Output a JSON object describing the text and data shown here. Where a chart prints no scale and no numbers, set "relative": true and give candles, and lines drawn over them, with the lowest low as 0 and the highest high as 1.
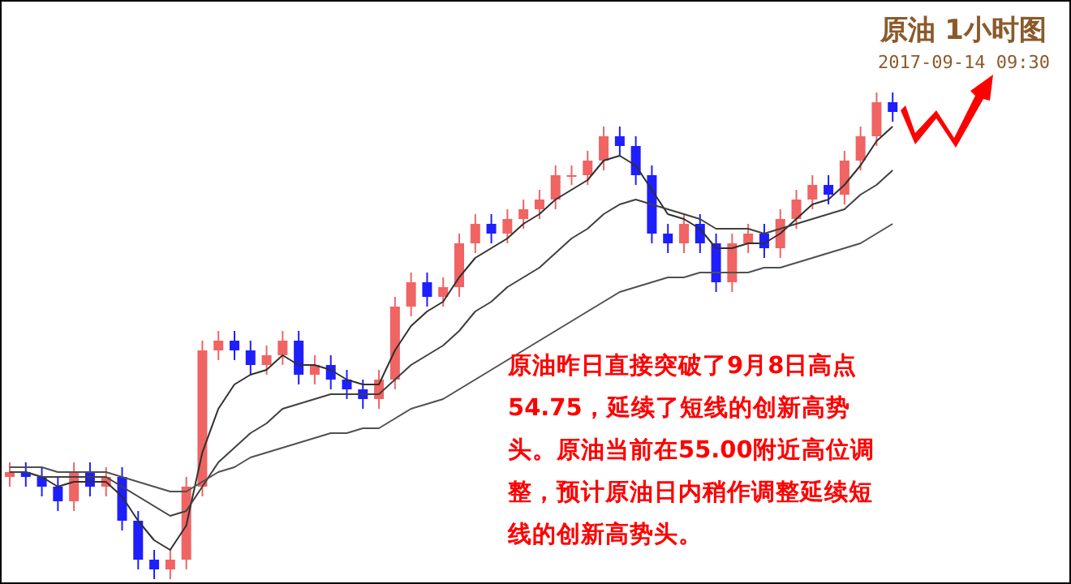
{
  "chart_data": {
    "type": "candlestick",
    "title": "原油 1小时图",
    "subtitle": "2017-09-14 09:30",
    "relative": true,
    "marker": "none",
    "annotations": [
      "原油昨日直接突破了9月8日高点54.75，延续了短线的创新高势头。原油当前在55.00附近高位调整，预计原油日内稍作调整延续短线的创新高势头。"
    ],
    "categories": [
      null,
      null,
      null,
      null,
      null,
      null,
      null,
      null,
      null,
      null,
      null,
      null,
      null,
      null,
      null,
      null,
      null,
      null,
      null,
      null,
      null,
      null,
      null,
      null,
      null,
      null,
      null,
      null,
      null,
      null,
      null,
      null,
      null,
      null,
      null,
      null,
      null,
      null,
      null,
      null,
      null,
      null,
      null,
      null,
      null,
      null,
      null,
      null,
      null,
      null,
      null,
      null,
      null,
      null,
      null,
      null
    ],
    "ohlc": [
      [
        0.21,
        0.24,
        0.19,
        0.22
      ],
      [
        0.22,
        0.24,
        0.19,
        0.21
      ],
      [
        0.21,
        0.23,
        0.17,
        0.19
      ],
      [
        0.19,
        0.21,
        0.14,
        0.16
      ],
      [
        0.16,
        0.24,
        0.14,
        0.22
      ],
      [
        0.22,
        0.24,
        0.17,
        0.19
      ],
      [
        0.19,
        0.23,
        0.17,
        0.21
      ],
      [
        0.21,
        0.23,
        0.1,
        0.12
      ],
      [
        0.12,
        0.14,
        0.02,
        0.04
      ],
      [
        0.04,
        0.06,
        0.0,
        0.02
      ],
      [
        0.02,
        0.06,
        0.0,
        0.04
      ],
      [
        0.04,
        0.21,
        0.02,
        0.19
      ],
      [
        0.19,
        0.49,
        0.17,
        0.47
      ],
      [
        0.47,
        0.51,
        0.45,
        0.49
      ],
      [
        0.49,
        0.51,
        0.45,
        0.47
      ],
      [
        0.47,
        0.49,
        0.42,
        0.44
      ],
      [
        0.44,
        0.48,
        0.42,
        0.46
      ],
      [
        0.46,
        0.51,
        0.44,
        0.49
      ],
      [
        0.49,
        0.51,
        0.4,
        0.42
      ],
      [
        0.42,
        0.46,
        0.4,
        0.44
      ],
      [
        0.44,
        0.46,
        0.39,
        0.41
      ],
      [
        0.41,
        0.43,
        0.37,
        0.39
      ],
      [
        0.39,
        0.41,
        0.35,
        0.37
      ],
      [
        0.37,
        0.43,
        0.35,
        0.41
      ],
      [
        0.41,
        0.58,
        0.39,
        0.56
      ],
      [
        0.56,
        0.63,
        0.54,
        0.61
      ],
      [
        0.61,
        0.63,
        0.56,
        0.58
      ],
      [
        0.58,
        0.62,
        0.56,
        0.6
      ],
      [
        0.6,
        0.71,
        0.58,
        0.69
      ],
      [
        0.69,
        0.75,
        0.67,
        0.73
      ],
      [
        0.73,
        0.75,
        0.69,
        0.71
      ],
      [
        0.71,
        0.76,
        0.69,
        0.74
      ],
      [
        0.74,
        0.78,
        0.72,
        0.76
      ],
      [
        0.76,
        0.8,
        0.74,
        0.78
      ],
      [
        0.78,
        0.85,
        0.76,
        0.83
      ],
      [
        0.83,
        0.85,
        0.81,
        0.83
      ],
      [
        0.83,
        0.88,
        0.81,
        0.86
      ],
      [
        0.86,
        0.93,
        0.84,
        0.91
      ],
      [
        0.91,
        0.93,
        0.87,
        0.89
      ],
      [
        0.89,
        0.91,
        0.81,
        0.83
      ],
      [
        0.83,
        0.85,
        0.69,
        0.71
      ],
      [
        0.71,
        0.73,
        0.67,
        0.69
      ],
      [
        0.69,
        0.75,
        0.67,
        0.73
      ],
      [
        0.73,
        0.75,
        0.67,
        0.69
      ],
      [
        0.69,
        0.71,
        0.59,
        0.61
      ],
      [
        0.61,
        0.71,
        0.59,
        0.69
      ],
      [
        0.69,
        0.73,
        0.67,
        0.71
      ],
      [
        0.71,
        0.73,
        0.66,
        0.68
      ],
      [
        0.68,
        0.76,
        0.66,
        0.74
      ],
      [
        0.74,
        0.8,
        0.72,
        0.78
      ],
      [
        0.78,
        0.83,
        0.76,
        0.81
      ],
      [
        0.81,
        0.83,
        0.77,
        0.79
      ],
      [
        0.79,
        0.88,
        0.77,
        0.86
      ],
      [
        0.86,
        0.93,
        0.84,
        0.91
      ],
      [
        0.91,
        1.0,
        0.89,
        0.98
      ],
      [
        0.98,
        1.0,
        0.94,
        0.96
      ]
    ],
    "colors": [
      "#f06464",
      "#1e1eff",
      "#1e1eff",
      "#1e1eff",
      "#f06464",
      "#1e1eff",
      "#f06464",
      "#1e1eff",
      "#1e1eff",
      "#1e1eff",
      "#f06464",
      "#f06464",
      "#f06464",
      "#f06464",
      "#1e1eff",
      "#1e1eff",
      "#f06464",
      "#f06464",
      "#1e1eff",
      "#f06464",
      "#1e1eff",
      "#1e1eff",
      "#1e1eff",
      "#f06464",
      "#f06464",
      "#f06464",
      "#1e1eff",
      "#f06464",
      "#f06464",
      "#f06464",
      "#1e1eff",
      "#f06464",
      "#f06464",
      "#f06464",
      "#f06464",
      "#f06464",
      "#f06464",
      "#f06464",
      "#1e1eff",
      "#1e1eff",
      "#1e1eff",
      "#1e1eff",
      "#f06464",
      "#1e1eff",
      "#1e1eff",
      "#f06464",
      "#f06464",
      "#1e1eff",
      "#f06464",
      "#f06464",
      "#f06464",
      "#1e1eff",
      "#f06464",
      "#f06464",
      "#f06464",
      "#1e1eff"
    ],
    "series": [
      {
        "type": "line",
        "color": "#303030",
        "values": [
          0.22,
          0.22,
          0.21,
          0.19,
          0.2,
          0.2,
          0.2,
          0.17,
          0.12,
          0.08,
          0.06,
          0.11,
          0.26,
          0.35,
          0.4,
          0.42,
          0.43,
          0.46,
          0.44,
          0.44,
          0.43,
          0.41,
          0.4,
          0.4,
          0.47,
          0.52,
          0.55,
          0.57,
          0.62,
          0.66,
          0.68,
          0.7,
          0.73,
          0.75,
          0.78,
          0.8,
          0.82,
          0.86,
          0.87,
          0.85,
          0.8,
          0.75,
          0.74,
          0.72,
          0.68,
          0.68,
          0.69,
          0.69,
          0.71,
          0.74,
          0.77,
          0.78,
          0.81,
          0.85,
          0.9,
          0.93
        ]
      },
      {
        "type": "line",
        "color": "#404040",
        "values": [
          0.22,
          0.22,
          0.21,
          0.21,
          0.21,
          0.21,
          0.21,
          0.19,
          0.17,
          0.15,
          0.13,
          0.14,
          0.19,
          0.24,
          0.27,
          0.3,
          0.32,
          0.35,
          0.36,
          0.37,
          0.38,
          0.38,
          0.38,
          0.38,
          0.41,
          0.44,
          0.46,
          0.48,
          0.51,
          0.55,
          0.57,
          0.6,
          0.62,
          0.64,
          0.67,
          0.7,
          0.72,
          0.75,
          0.77,
          0.78,
          0.77,
          0.76,
          0.75,
          0.74,
          0.72,
          0.72,
          0.72,
          0.71,
          0.72,
          0.73,
          0.74,
          0.75,
          0.76,
          0.79,
          0.81,
          0.84
        ]
      },
      {
        "type": "line",
        "color": "#505050",
        "values": [
          0.23,
          0.23,
          0.23,
          0.22,
          0.22,
          0.22,
          0.22,
          0.21,
          0.2,
          0.19,
          0.18,
          0.18,
          0.2,
          0.22,
          0.23,
          0.25,
          0.26,
          0.27,
          0.28,
          0.29,
          0.3,
          0.3,
          0.31,
          0.31,
          0.33,
          0.35,
          0.36,
          0.37,
          0.39,
          0.41,
          0.43,
          0.45,
          0.47,
          0.49,
          0.51,
          0.53,
          0.55,
          0.57,
          0.59,
          0.6,
          0.61,
          0.62,
          0.62,
          0.63,
          0.63,
          0.63,
          0.63,
          0.64,
          0.64,
          0.65,
          0.66,
          0.67,
          0.68,
          0.69,
          0.71,
          0.73
        ]
      }
    ]
  }
}
